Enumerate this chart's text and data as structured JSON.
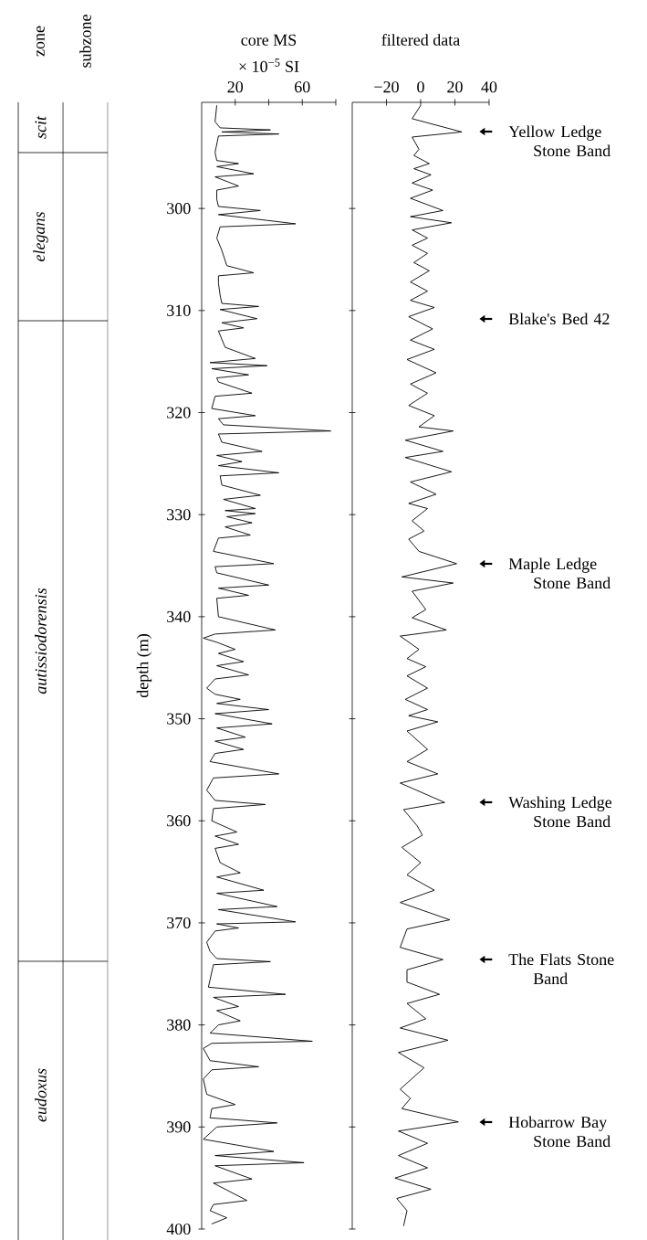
{
  "chart_data": [
    {
      "type": "other",
      "categories": [
        "zone",
        "subzone"
      ],
      "annotations": [
        "scit",
        "elegans",
        "autissiodorensis",
        "eudoxus"
      ]
    },
    {
      "type": "line",
      "title": "core MS",
      "xlabel": "× 10$^{−5}$ SI",
      "ylabel": "depth (m)",
      "color": "#000000",
      "xlim": [
        0,
        80
      ],
      "xticks": [
        20,
        {
          "value": 40,
          "label": null
        },
        60,
        {
          "value": 80,
          "label": null
        }
      ],
      "ylim": [
        400,
        289.6
      ],
      "yticks": [
        300,
        310,
        320,
        330,
        340,
        350,
        360,
        370,
        380,
        390,
        400
      ],
      "x": [
        9,
        8,
        11,
        41,
        12,
        46,
        10,
        8,
        9,
        22,
        9,
        31,
        8,
        22,
        9,
        9,
        10,
        35,
        10,
        56,
        11,
        9,
        12,
        15,
        31,
        10,
        10,
        11,
        12,
        34,
        11,
        33,
        12,
        25,
        10,
        14,
        32,
        5,
        39,
        6,
        28,
        9,
        10,
        30,
        8,
        6,
        32,
        10,
        13,
        77,
        10,
        12,
        36,
        9,
        24,
        10,
        46,
        11,
        12,
        35,
        13,
        32,
        14,
        32,
        15,
        30,
        14,
        29,
        10,
        7,
        43,
        8,
        9,
        40,
        10,
        28,
        9,
        10,
        44,
        8,
        1,
        9,
        20,
        10,
        25,
        9,
        28,
        8,
        3,
        8,
        23,
        9,
        40,
        8,
        42,
        9,
        26,
        8,
        25,
        8,
        5,
        46,
        7,
        3,
        8,
        38,
        7,
        6,
        21,
        8,
        22,
        8,
        11,
        23,
        9,
        37,
        9,
        45,
        10,
        56,
        9,
        22,
        8,
        3,
        5,
        9,
        41,
        7,
        4,
        50,
        7,
        22,
        9,
        23,
        10,
        5,
        66,
        6,
        1,
        5,
        34,
        6,
        1,
        3,
        20,
        6,
        5,
        45,
        9,
        1,
        43,
        8,
        61,
        8,
        30,
        7,
        27,
        7,
        5,
        15,
        6
      ],
      "values": [
        289.9,
        291.5,
        292.1,
        292.3,
        292.5,
        292.7,
        292.9,
        294.5,
        295.3,
        295.6,
        295.9,
        296.6,
        296.9,
        297.8,
        298.2,
        299.1,
        299.8,
        300.2,
        300.6,
        301.5,
        301.8,
        302.9,
        304.1,
        305.6,
        306.3,
        306.6,
        307.3,
        308.5,
        309.3,
        309.6,
        309.9,
        310.8,
        311.2,
        311.7,
        312,
        313.6,
        314.7,
        315.1,
        315.4,
        315.7,
        316.3,
        316.6,
        317,
        318.1,
        318.4,
        319.6,
        320.3,
        320.6,
        321.2,
        321.8,
        322.1,
        322.9,
        323.8,
        324.2,
        324.8,
        325.2,
        325.9,
        326.2,
        327.1,
        328.1,
        328.5,
        329.4,
        329.6,
        329.9,
        330.2,
        330.8,
        331.2,
        332,
        332.3,
        333.6,
        334.8,
        335.1,
        335.7,
        336.9,
        337.2,
        337.9,
        338.2,
        340,
        341.3,
        341.7,
        342.1,
        342.5,
        343.2,
        343.6,
        344.4,
        344.8,
        345.7,
        346.1,
        347,
        347.6,
        348.1,
        348.5,
        349.1,
        349.5,
        350.5,
        350.9,
        351.8,
        352.2,
        353,
        353.4,
        354.2,
        355.4,
        355.8,
        357,
        358,
        358.4,
        358.8,
        360,
        361.1,
        361.5,
        362.3,
        362.7,
        364.1,
        365.1,
        365.5,
        366.8,
        367.1,
        368.4,
        368.7,
        369.9,
        370.1,
        370.5,
        370.8,
        371.9,
        372.8,
        373.5,
        373.8,
        374.1,
        376.3,
        377,
        377.3,
        378.2,
        378.6,
        379.6,
        380,
        380.8,
        381.6,
        381.8,
        382.3,
        383.5,
        384.1,
        384.4,
        385.3,
        386.8,
        387.8,
        388.2,
        389.1,
        389.6,
        390,
        391.2,
        392.4,
        392.8,
        393.5,
        393.8,
        395.1,
        395.5,
        397.2,
        397.6,
        398.2,
        398.9,
        399.5
      ]
    },
    {
      "type": "line",
      "title": "filtered data",
      "color": "#000000",
      "tick_labels": "x",
      "xlim": [
        -40,
        40
      ],
      "xticks": [
        {
          "value": -20,
          "label": "−20"
        },
        0,
        20,
        40
      ],
      "ylim": [
        400,
        289.6
      ],
      "yticks": [
        300,
        310,
        320,
        330,
        340,
        350,
        360,
        370,
        380,
        390,
        400
      ],
      "x": [
        0,
        -5,
        24,
        -5,
        -1,
        -4,
        5,
        -4,
        6,
        -5,
        7,
        -6,
        13,
        -6,
        18,
        -5,
        4,
        -5,
        4,
        -4,
        5,
        -6,
        4,
        -6,
        8,
        -7,
        7,
        -6,
        8,
        -8,
        9,
        -6,
        4,
        -7,
        8,
        -1,
        19,
        -9,
        13,
        -9,
        18,
        -6,
        9,
        -7,
        4,
        -5,
        2,
        -7,
        -1,
        21,
        -11,
        19,
        -5,
        3,
        -5,
        15,
        -12,
        -1,
        -8,
        3,
        -8,
        4,
        -9,
        4,
        -7,
        10,
        -8,
        4,
        -8,
        10,
        -12,
        14,
        -10,
        -2,
        1,
        -11,
        0,
        -8,
        8,
        -12,
        17,
        -8,
        -12,
        13,
        -8,
        -8,
        11,
        -8,
        3,
        -12,
        16,
        -13,
        2,
        -12,
        -6,
        -11,
        22,
        -13,
        4,
        -13,
        4,
        -15,
        6,
        -14,
        -8,
        -10
      ],
      "values": [
        289.9,
        291.2,
        292.5,
        293,
        294.2,
        294.8,
        295.6,
        296.1,
        296.7,
        297.5,
        298.2,
        299,
        300.2,
        300.8,
        301.4,
        302.1,
        302.9,
        303.6,
        304.4,
        305.3,
        306.1,
        307.2,
        308.1,
        309,
        309.7,
        310.6,
        311.8,
        312.9,
        313.8,
        314.8,
        316.1,
        317.2,
        318.1,
        319.3,
        320.3,
        321.4,
        321.8,
        322.7,
        323.8,
        324.4,
        325.8,
        326.8,
        328,
        328.9,
        329.4,
        330.6,
        331.6,
        332.4,
        333.6,
        334.8,
        336.1,
        336.7,
        337.5,
        339.3,
        340.1,
        341.3,
        341.9,
        343.2,
        344.1,
        344.9,
        345.8,
        347,
        348.1,
        349.1,
        349.7,
        350.3,
        351.2,
        353,
        354.2,
        355.4,
        356.3,
        358.2,
        358.9,
        360.5,
        361.4,
        362.6,
        364.1,
        365.3,
        366.8,
        368,
        369.7,
        370.6,
        372.4,
        373.6,
        374.6,
        375.8,
        377,
        377.9,
        379.4,
        380.3,
        381.5,
        382.7,
        384.2,
        386.3,
        387.2,
        388.2,
        389.5,
        390.4,
        391.6,
        392.8,
        394,
        395,
        396.1,
        397,
        398.2,
        399.7
      ],
      "annotations": [
        "Yellow Ledge Stone Band",
        "Blake's Bed 42",
        "Maple Ledge Stone Band",
        "Washing Ledge Stone Band",
        "The Flats Stone Band",
        "Hobarrow Bay Stone Band"
      ]
    }
  ]
}
